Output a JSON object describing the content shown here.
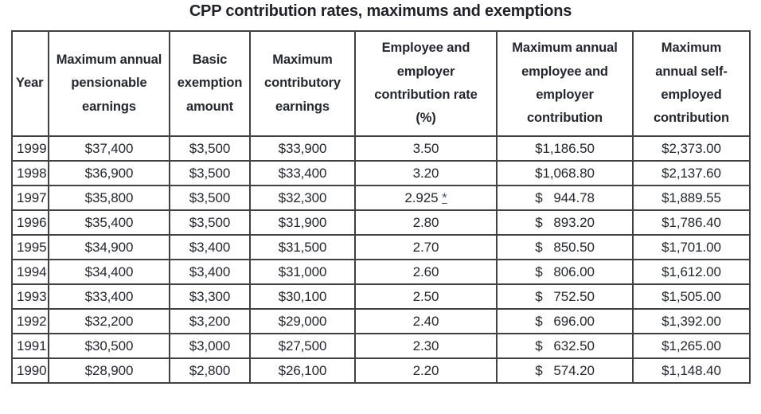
{
  "title": "CPP contribution rates, maximums and exemptions",
  "colors": {
    "text": "#23272e",
    "border": "#414141",
    "background": "#ffffff",
    "footnote_link": "#3d5a76"
  },
  "footnote": {
    "marker": "*"
  },
  "chart_data": {
    "type": "table",
    "title": "CPP contribution rates, maximums and exemptions",
    "columns": [
      "Year",
      "Maximum annual pensionable earnings",
      "Basic exemption amount",
      "Maximum contributory earnings",
      "Employee and employer contribution rate (%)",
      "Maximum annual employee and employer contribution",
      "Maximum annual self-employed contribution"
    ],
    "rows": [
      {
        "year": "1999",
        "max_pensionable_earnings": "$37,400",
        "basic_exemption": "$3,500",
        "max_contributory_earnings": "$33,900",
        "contribution_rate": "3.50",
        "rate_footnote": "",
        "max_employee_employer_contribution": "$1,186.50",
        "max_self_employed_contribution": "$2,373.00"
      },
      {
        "year": "1998",
        "max_pensionable_earnings": "$36,900",
        "basic_exemption": "$3,500",
        "max_contributory_earnings": "$33,400",
        "contribution_rate": "3.20",
        "rate_footnote": "",
        "max_employee_employer_contribution": "$1,068.80",
        "max_self_employed_contribution": "$2,137.60"
      },
      {
        "year": "1997",
        "max_pensionable_earnings": "$35,800",
        "basic_exemption": "$3,500",
        "max_contributory_earnings": "$32,300",
        "contribution_rate": "2.925",
        "rate_footnote": "*",
        "max_employee_employer_contribution": "$   944.78",
        "max_self_employed_contribution": "$1,889.55"
      },
      {
        "year": "1996",
        "max_pensionable_earnings": "$35,400",
        "basic_exemption": "$3,500",
        "max_contributory_earnings": "$31,900",
        "contribution_rate": "2.80",
        "rate_footnote": "",
        "max_employee_employer_contribution": "$   893.20",
        "max_self_employed_contribution": "$1,786.40"
      },
      {
        "year": "1995",
        "max_pensionable_earnings": "$34,900",
        "basic_exemption": "$3,400",
        "max_contributory_earnings": "$31,500",
        "contribution_rate": "2.70",
        "rate_footnote": "",
        "max_employee_employer_contribution": "$   850.50",
        "max_self_employed_contribution": "$1,701.00"
      },
      {
        "year": "1994",
        "max_pensionable_earnings": "$34,400",
        "basic_exemption": "$3,400",
        "max_contributory_earnings": "$31,000",
        "contribution_rate": "2.60",
        "rate_footnote": "",
        "max_employee_employer_contribution": "$   806.00",
        "max_self_employed_contribution": "$1,612.00"
      },
      {
        "year": "1993",
        "max_pensionable_earnings": "$33,400",
        "basic_exemption": "$3,300",
        "max_contributory_earnings": "$30,100",
        "contribution_rate": "2.50",
        "rate_footnote": "",
        "max_employee_employer_contribution": "$   752.50",
        "max_self_employed_contribution": "$1,505.00"
      },
      {
        "year": "1992",
        "max_pensionable_earnings": "$32,200",
        "basic_exemption": "$3,200",
        "max_contributory_earnings": "$29,000",
        "contribution_rate": "2.40",
        "rate_footnote": "",
        "max_employee_employer_contribution": "$   696.00",
        "max_self_employed_contribution": "$1,392.00"
      },
      {
        "year": "1991",
        "max_pensionable_earnings": "$30,500",
        "basic_exemption": "$3,000",
        "max_contributory_earnings": "$27,500",
        "contribution_rate": "2.30",
        "rate_footnote": "",
        "max_employee_employer_contribution": "$   632.50",
        "max_self_employed_contribution": "$1,265.00"
      },
      {
        "year": "1990",
        "max_pensionable_earnings": "$28,900",
        "basic_exemption": "$2,800",
        "max_contributory_earnings": "$26,100",
        "contribution_rate": "2.20",
        "rate_footnote": "",
        "max_employee_employer_contribution": "$   574.20",
        "max_self_employed_contribution": "$1,148.40"
      }
    ]
  }
}
